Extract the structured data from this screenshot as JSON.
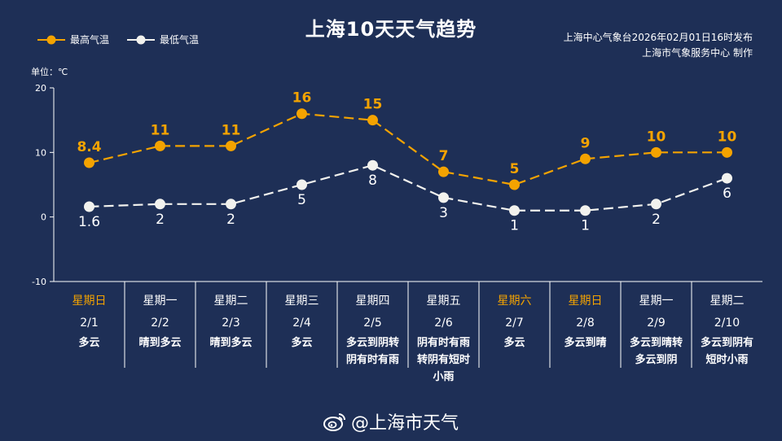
{
  "title": "上海10天天气趋势",
  "legend": {
    "high_label": "最高气温",
    "low_label": "最低气温"
  },
  "issuer": {
    "line1": "上海中心气象台2026年02月01日16时发布",
    "line2": "上海市气象服务中心 制作"
  },
  "unit_label": "单位：℃",
  "watermark": "@上海市天气",
  "colors": {
    "background": "#1e2f56",
    "high": "#f4a300",
    "low": "#f2f2ee",
    "weekend": "#f4a300",
    "text": "#ffffff"
  },
  "chart_data": {
    "type": "line",
    "categories": [
      "2/1",
      "2/2",
      "2/3",
      "2/4",
      "2/5",
      "2/6",
      "2/7",
      "2/8",
      "2/9",
      "2/10"
    ],
    "weekdays": [
      "星期日",
      "星期一",
      "星期二",
      "星期三",
      "星期四",
      "星期五",
      "星期六",
      "星期日",
      "星期一",
      "星期二"
    ],
    "weekend": [
      true,
      false,
      false,
      false,
      false,
      false,
      true,
      true,
      false,
      false
    ],
    "weather": [
      [
        "多云"
      ],
      [
        "晴到多云"
      ],
      [
        "晴到多云"
      ],
      [
        "多云"
      ],
      [
        "多云到阴转",
        "阴有时有雨"
      ],
      [
        "阴有时有雨",
        "转阴有短时",
        "小雨"
      ],
      [
        "多云"
      ],
      [
        "多云到晴"
      ],
      [
        "多云到晴转",
        "多云到阴"
      ],
      [
        "多云到阴有",
        "短时小雨"
      ]
    ],
    "series": [
      {
        "name": "最高气温",
        "values": [
          8.4,
          11,
          11,
          16,
          15,
          7,
          5,
          9,
          10,
          10
        ],
        "labels": [
          "8.4",
          "11",
          "11",
          "16",
          "15",
          "7",
          "5",
          "9",
          "10",
          "10"
        ]
      },
      {
        "name": "最低气温",
        "values": [
          1.6,
          2,
          2,
          5,
          8,
          3,
          1,
          1,
          2,
          6
        ],
        "labels": [
          "1.6",
          "2",
          "2",
          "5",
          "8",
          "3",
          "1",
          "1",
          "2",
          "6"
        ]
      }
    ],
    "ylim": [
      -10,
      20
    ],
    "yticks": [
      20,
      10,
      0,
      -10
    ],
    "grid": false,
    "legend_position": "top-left"
  }
}
